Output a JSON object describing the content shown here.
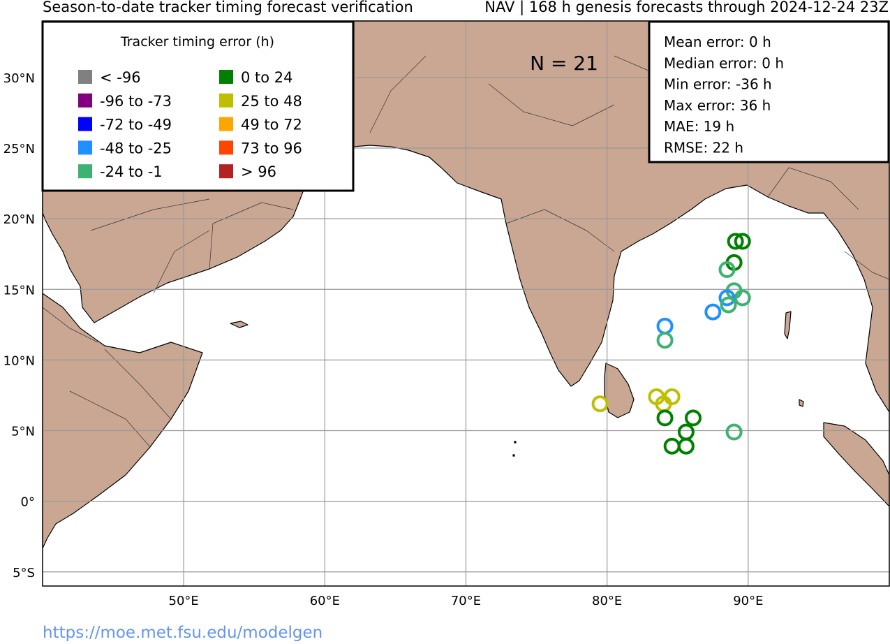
{
  "header": {
    "title_left": "Season-to-date tracker timing forecast verification",
    "title_right": "NAV | 168 h genesis forecasts through 2024-12-24 23Z"
  },
  "footer": {
    "link": "https://moe.met.fsu.edu/modelgen"
  },
  "map": {
    "lon_range": [
      40,
      100
    ],
    "lat_range": [
      -6,
      34
    ],
    "lon_ticks": [
      {
        "v": 50,
        "label": "50°E"
      },
      {
        "v": 60,
        "label": "60°E"
      },
      {
        "v": 70,
        "label": "70°E"
      },
      {
        "v": 80,
        "label": "80°E"
      },
      {
        "v": 90,
        "label": "90°E"
      }
    ],
    "lat_ticks": [
      {
        "v": 30,
        "label": "30°N"
      },
      {
        "v": 25,
        "label": "25°N"
      },
      {
        "v": 20,
        "label": "20°N"
      },
      {
        "v": 15,
        "label": "15°N"
      },
      {
        "v": 10,
        "label": "10°N"
      },
      {
        "v": 5,
        "label": "5°N"
      },
      {
        "v": 0,
        "label": "0°"
      },
      {
        "v": -5,
        "label": "5°S"
      }
    ],
    "land_color": "#c9a793",
    "ocean_color": "#ffffff",
    "gridlines": true,
    "count_label": "N = 21"
  },
  "legend": {
    "title": "Tracker timing error (h)",
    "placement": "top-left",
    "items": [
      {
        "label": "< -96",
        "color": "#808080"
      },
      {
        "label": "-96 to -73",
        "color": "#800080"
      },
      {
        "label": "-72 to -49",
        "color": "#0000ff"
      },
      {
        "label": "-48 to -25",
        "color": "#1e90ff"
      },
      {
        "label": "-24 to -1",
        "color": "#3cb371"
      },
      {
        "label": "0 to 24",
        "color": "#008000"
      },
      {
        "label": "25 to 48",
        "color": "#bfbf00"
      },
      {
        "label": "49 to 72",
        "color": "#ffa500"
      },
      {
        "label": "73 to 96",
        "color": "#ff4500"
      },
      {
        "label": "> 96",
        "color": "#b22222"
      }
    ]
  },
  "stats": {
    "placement": "top-right",
    "lines": [
      "Mean error: 0 h",
      "Median error: 0 h",
      "Min error: -36 h",
      "Max error: 36 h",
      "MAE: 19 h",
      "RMSE: 22 h"
    ]
  },
  "points": [
    {
      "lon": 89.1,
      "lat": 18.4,
      "color": "#008000"
    },
    {
      "lon": 89.6,
      "lat": 18.4,
      "color": "#008000"
    },
    {
      "lon": 89.0,
      "lat": 16.9,
      "color": "#008000"
    },
    {
      "lon": 88.5,
      "lat": 16.4,
      "color": "#3cb371"
    },
    {
      "lon": 89.0,
      "lat": 14.9,
      "color": "#3cb371"
    },
    {
      "lon": 89.6,
      "lat": 14.4,
      "color": "#3cb371"
    },
    {
      "lon": 88.5,
      "lat": 14.4,
      "color": "#1e90ff"
    },
    {
      "lon": 88.6,
      "lat": 13.9,
      "color": "#3cb371"
    },
    {
      "lon": 87.5,
      "lat": 13.4,
      "color": "#1e90ff"
    },
    {
      "lon": 84.1,
      "lat": 12.4,
      "color": "#1e90ff"
    },
    {
      "lon": 84.1,
      "lat": 11.4,
      "color": "#3cb371"
    },
    {
      "lon": 83.5,
      "lat": 7.4,
      "color": "#bfbf00"
    },
    {
      "lon": 84.6,
      "lat": 7.4,
      "color": "#bfbf00"
    },
    {
      "lon": 84.0,
      "lat": 6.9,
      "color": "#bfbf00"
    },
    {
      "lon": 79.5,
      "lat": 6.9,
      "color": "#bfbf00"
    },
    {
      "lon": 84.1,
      "lat": 5.9,
      "color": "#008000"
    },
    {
      "lon": 86.1,
      "lat": 5.9,
      "color": "#008000"
    },
    {
      "lon": 85.6,
      "lat": 4.9,
      "color": "#008000"
    },
    {
      "lon": 89.0,
      "lat": 4.9,
      "color": "#3cb371"
    },
    {
      "lon": 84.6,
      "lat": 3.9,
      "color": "#008000"
    },
    {
      "lon": 85.6,
      "lat": 3.9,
      "color": "#008000"
    }
  ]
}
